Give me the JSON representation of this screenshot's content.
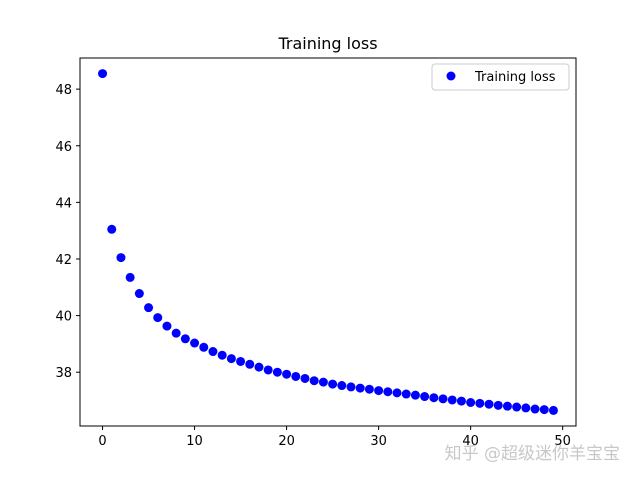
{
  "chart_data": {
    "type": "scatter",
    "title": "Training loss",
    "xlabel": "",
    "ylabel": "",
    "xlim": [
      -2.45,
      51.45
    ],
    "ylim": [
      36.1,
      49.1
    ],
    "xticks": [
      0,
      10,
      20,
      30,
      40,
      50
    ],
    "yticks": [
      38,
      40,
      42,
      44,
      46,
      48
    ],
    "grid": false,
    "legend": {
      "position": "top-right",
      "entries": [
        "Training loss"
      ]
    },
    "series": [
      {
        "name": "Training loss",
        "color": "#0000ff",
        "x": [
          0,
          1,
          2,
          3,
          4,
          5,
          6,
          7,
          8,
          9,
          10,
          11,
          12,
          13,
          14,
          15,
          16,
          17,
          18,
          19,
          20,
          21,
          22,
          23,
          24,
          25,
          26,
          27,
          28,
          29,
          30,
          31,
          32,
          33,
          34,
          35,
          36,
          37,
          38,
          39,
          40,
          41,
          42,
          43,
          44,
          45,
          46,
          47,
          48,
          49
        ],
        "y": [
          48.55,
          43.05,
          42.05,
          41.35,
          40.78,
          40.28,
          39.93,
          39.63,
          39.38,
          39.18,
          39.03,
          38.88,
          38.73,
          38.6,
          38.48,
          38.38,
          38.28,
          38.18,
          38.08,
          38.0,
          37.93,
          37.85,
          37.78,
          37.7,
          37.65,
          37.58,
          37.53,
          37.48,
          37.44,
          37.4,
          37.35,
          37.31,
          37.27,
          37.23,
          37.19,
          37.14,
          37.1,
          37.06,
          37.02,
          36.98,
          36.93,
          36.9,
          36.87,
          36.83,
          36.8,
          36.77,
          36.74,
          36.7,
          36.68,
          36.65
        ]
      }
    ]
  },
  "watermark": "知乎 @超级迷你羊宝宝"
}
